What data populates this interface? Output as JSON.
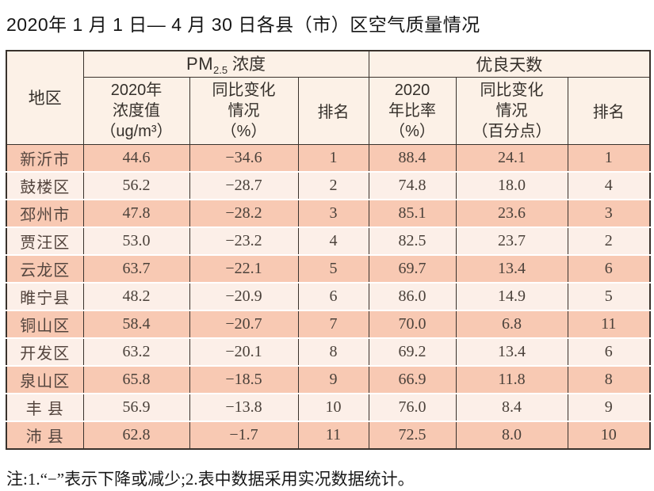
{
  "title": "2020年 1 月 1 日— 4 月 30 日各县（市）区空气质量情况",
  "note": "注:1.“−”表示下降或减少;2.表中数据采用实况数据统计。",
  "colors": {
    "row_odd": "#f8c9b3",
    "row_even": "#fcefe8",
    "header_bg": "#fcf1e7",
    "border": "#39322c"
  },
  "table": {
    "group_headers": {
      "region": "地区",
      "pm25_prefix": "PM",
      "pm25_sub": "2.5",
      "pm25_suffix": " 浓度",
      "good_days": "优良天数"
    },
    "col_headers": {
      "pm_value": [
        "2020年",
        "浓度值",
        "（ug/m³）"
      ],
      "pm_change": [
        "同比变化",
        "情况",
        "（%）"
      ],
      "pm_rank": "排名",
      "good_ratio": [
        "2020",
        "年比率",
        "（%）"
      ],
      "good_change": [
        "同比变化",
        "情况",
        "（百分点）"
      ],
      "good_rank": "排名"
    },
    "rows": [
      {
        "region": "新沂市",
        "pm_value": "44.6",
        "pm_change": "−34.6",
        "pm_rank": "1",
        "good_ratio": "88.4",
        "good_change": "24.1",
        "good_rank": "1"
      },
      {
        "region": "鼓楼区",
        "pm_value": "56.2",
        "pm_change": "−28.7",
        "pm_rank": "2",
        "good_ratio": "74.8",
        "good_change": "18.0",
        "good_rank": "4"
      },
      {
        "region": "邳州市",
        "pm_value": "47.8",
        "pm_change": "−28.2",
        "pm_rank": "3",
        "good_ratio": "85.1",
        "good_change": "23.6",
        "good_rank": "3"
      },
      {
        "region": "贾汪区",
        "pm_value": "53.0",
        "pm_change": "−23.2",
        "pm_rank": "4",
        "good_ratio": "82.5",
        "good_change": "23.7",
        "good_rank": "2"
      },
      {
        "region": "云龙区",
        "pm_value": "63.7",
        "pm_change": "−22.1",
        "pm_rank": "5",
        "good_ratio": "69.7",
        "good_change": "13.4",
        "good_rank": "6"
      },
      {
        "region": "睢宁县",
        "pm_value": "48.2",
        "pm_change": "−20.9",
        "pm_rank": "6",
        "good_ratio": "86.0",
        "good_change": "14.9",
        "good_rank": "5"
      },
      {
        "region": "铜山区",
        "pm_value": "58.4",
        "pm_change": "−20.7",
        "pm_rank": "7",
        "good_ratio": "70.0",
        "good_change": "6.8",
        "good_rank": "11"
      },
      {
        "region": "开发区",
        "pm_value": "63.2",
        "pm_change": "−20.1",
        "pm_rank": "8",
        "good_ratio": "69.2",
        "good_change": "13.4",
        "good_rank": "6"
      },
      {
        "region": "泉山区",
        "pm_value": "65.8",
        "pm_change": "−18.5",
        "pm_rank": "9",
        "good_ratio": "66.9",
        "good_change": "11.8",
        "good_rank": "8"
      },
      {
        "region": "丰 县",
        "pm_value": "56.9",
        "pm_change": "−13.8",
        "pm_rank": "10",
        "good_ratio": "76.0",
        "good_change": "8.4",
        "good_rank": "9"
      },
      {
        "region": "沛 县",
        "pm_value": "62.8",
        "pm_change": "−1.7",
        "pm_rank": "11",
        "good_ratio": "72.5",
        "good_change": "8.0",
        "good_rank": "10"
      }
    ]
  }
}
